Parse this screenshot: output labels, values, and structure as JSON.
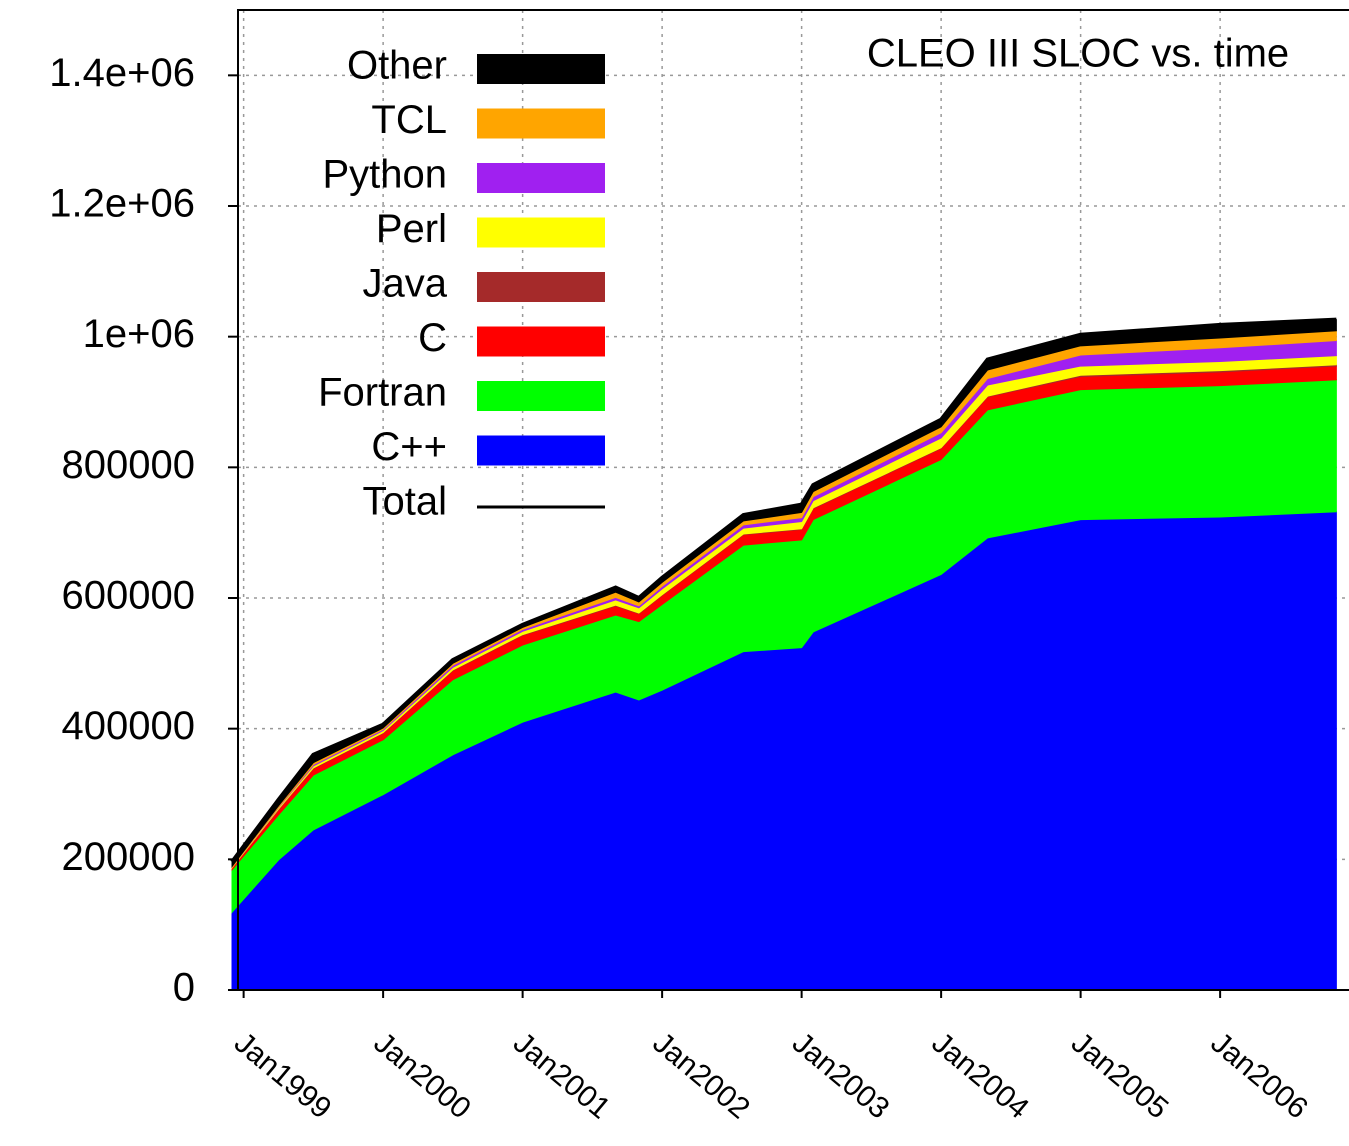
{
  "chart_data": {
    "type": "stacked-area",
    "title": "CLEO III SLOC vs. time",
    "x": [
      "1998-12",
      "1999-04",
      "1999-07",
      "2000-01",
      "2000-07",
      "2001-01",
      "2001-09",
      "2001-11",
      "2002-01",
      "2002-08",
      "2003-01",
      "2003-02",
      "2004-01",
      "2004-05",
      "2005-01",
      "2006-01",
      "2006-11"
    ],
    "series": [
      {
        "name": "C++",
        "color": "#0000ff",
        "values": [
          119000,
          199000,
          245000,
          299000,
          360000,
          410000,
          456000,
          444000,
          459000,
          518000,
          524000,
          548000,
          636000,
          692000,
          720000,
          724000,
          732000
        ]
      },
      {
        "name": "Fortran",
        "color": "#00ff00",
        "values": [
          65000,
          69000,
          84000,
          84000,
          115000,
          118000,
          118000,
          120000,
          131000,
          163000,
          165000,
          172000,
          176000,
          196000,
          199000,
          201000,
          202000
        ]
      },
      {
        "name": "C",
        "color": "#ff0000",
        "values": [
          3000,
          8000,
          10000,
          10000,
          14000,
          15000,
          14000,
          12000,
          14000,
          16000,
          16000,
          17000,
          17000,
          20000,
          20000,
          21000,
          21000
        ]
      },
      {
        "name": "Java",
        "color": "#a52a2a",
        "values": [
          0,
          1000,
          1000,
          1000,
          1000,
          1000,
          1000,
          1000,
          1000,
          1000,
          1000,
          1000,
          1000,
          1000,
          2000,
          2000,
          2000
        ]
      },
      {
        "name": "Perl",
        "color": "#ffff00",
        "values": [
          1000,
          2000,
          3000,
          3000,
          4000,
          5000,
          8000,
          8000,
          9000,
          9000,
          11000,
          11000,
          15000,
          17000,
          14000,
          14000,
          14000
        ]
      },
      {
        "name": "Python",
        "color": "#a020f0",
        "values": [
          0,
          1000,
          2000,
          2000,
          3000,
          3000,
          4000,
          3000,
          4000,
          5000,
          6000,
          6000,
          8000,
          10000,
          17000,
          21000,
          23000
        ]
      },
      {
        "name": "TCL",
        "color": "#ffa500",
        "values": [
          1000,
          2000,
          3000,
          2000,
          3000,
          3000,
          8000,
          6000,
          6000,
          6000,
          8000,
          8000,
          9000,
          13000,
          14000,
          15000,
          15000
        ]
      },
      {
        "name": "Other",
        "color": "#000000",
        "values": [
          7000,
          9000,
          12000,
          5000,
          5000,
          4000,
          7000,
          6000,
          7000,
          9000,
          12000,
          10000,
          11000,
          16000,
          17000,
          20000,
          17000
        ]
      },
      {
        "name": "Total",
        "color": "#000000",
        "line": true,
        "values": [
          196000,
          291000,
          360000,
          406000,
          505000,
          559000,
          616000,
          600000,
          631000,
          727000,
          743000,
          773000,
          873000,
          965000,
          1003000,
          1018000,
          1026000
        ]
      }
    ],
    "xlim": [
      "1998-12",
      "2006-12"
    ],
    "xticks": [
      {
        "value": "1999-01",
        "label": "Jan1999"
      },
      {
        "value": "2000-01",
        "label": "Jan2000"
      },
      {
        "value": "2001-01",
        "label": "Jan2001"
      },
      {
        "value": "2002-01",
        "label": "Jan2002"
      },
      {
        "value": "2003-01",
        "label": "Jan2003"
      },
      {
        "value": "2004-01",
        "label": "Jan2004"
      },
      {
        "value": "2005-01",
        "label": "Jan2005"
      },
      {
        "value": "2006-01",
        "label": "Jan2006"
      }
    ],
    "ylim": [
      0,
      1500000
    ],
    "yticks": [
      0,
      200000,
      400000,
      600000,
      800000,
      {
        "value": 1000000,
        "label": "1e+06"
      },
      {
        "value": 1200000,
        "label": "1.2e+06"
      },
      {
        "value": 1400000,
        "label": "1.4e+06"
      }
    ],
    "grid": true,
    "legend": "top-left"
  }
}
